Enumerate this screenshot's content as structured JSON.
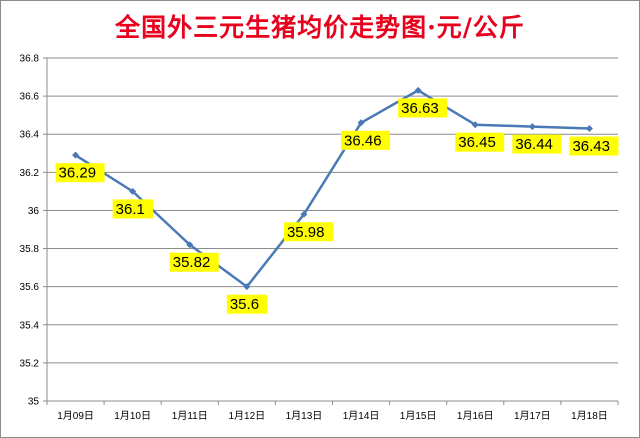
{
  "chart_data": {
    "type": "line",
    "title": "全国外三元生猪均价走势图·元/公斤",
    "categories": [
      "1月09日",
      "1月10日",
      "1月11日",
      "1月12日",
      "1月13日",
      "1月14日",
      "1月15日",
      "1月16日",
      "1月17日",
      "1月18日"
    ],
    "series": [
      {
        "values": [
          36.29,
          36.1,
          35.82,
          35.6,
          35.98,
          36.46,
          36.63,
          36.45,
          36.44,
          36.43
        ]
      }
    ],
    "data_labels": [
      "36.29",
      "36.1",
      "35.82",
      "35.6",
      "35.98",
      "36.46",
      "36.63",
      "36.45",
      "36.44",
      "36.43"
    ],
    "ylim": [
      35,
      36.8
    ],
    "yticks": [
      35,
      35.2,
      35.4,
      35.6,
      35.8,
      36,
      36.2,
      36.4,
      36.6,
      36.8
    ],
    "ytick_labels": [
      "35",
      "35.2",
      "35.4",
      "35.6",
      "35.8",
      "36",
      "36.2",
      "36.4",
      "36.6",
      "36.8"
    ],
    "grid": true,
    "legend": "none",
    "colors": {
      "line": "#4a7ab5",
      "marker": "#4a7ab5",
      "label_bg": "#ffff00",
      "title": "#e8001c",
      "grid": "#8c8c8c"
    }
  }
}
